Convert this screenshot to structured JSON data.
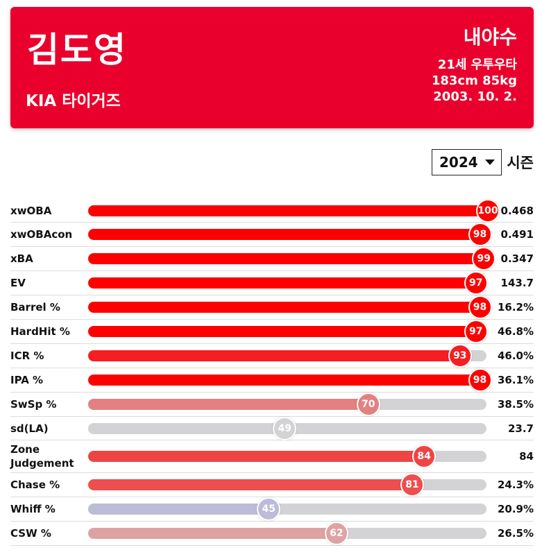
{
  "player": {
    "name": "김도영",
    "team": "KIA 타이거즈",
    "position": "내야수",
    "age_hand": "21세 우투우타",
    "body": "183cm 85kg",
    "birth": "2003. 10. 2."
  },
  "season": {
    "selected": "2024",
    "label": "시즌"
  },
  "metrics": [
    {
      "label": "xwOBA",
      "percentile": 100,
      "value": "0.468",
      "color": "#ff0000"
    },
    {
      "label": "xwOBAcon",
      "percentile": 98,
      "value": "0.491",
      "color": "#ff0000"
    },
    {
      "label": "xBA",
      "percentile": 99,
      "value": "0.347",
      "color": "#ff0000"
    },
    {
      "label": "EV",
      "percentile": 97,
      "value": "143.7",
      "color": "#ff0000"
    },
    {
      "label": "Barrel %",
      "percentile": 98,
      "value": "16.2%",
      "color": "#ff0000"
    },
    {
      "label": "HardHit %",
      "percentile": 97,
      "value": "46.8%",
      "color": "#ff0000"
    },
    {
      "label": "ICR %",
      "percentile": 93,
      "value": "46.0%",
      "color": "#f51e22"
    },
    {
      "label": "IPA %",
      "percentile": 98,
      "value": "36.1%",
      "color": "#ff0000"
    },
    {
      "label": "SwSp %",
      "percentile": 70,
      "value": "38.5%",
      "color": "#e38080"
    },
    {
      "label": "sd(LA)",
      "percentile": 49,
      "value": "23.7",
      "color": "#d3d3d5"
    },
    {
      "label": "Zone Judgement",
      "percentile": 84,
      "value": "84",
      "color": "#ef4444"
    },
    {
      "label": "Chase %",
      "percentile": 81,
      "value": "24.3%",
      "color": "#ee4e4e"
    },
    {
      "label": "Whiff %",
      "percentile": 45,
      "value": "20.9%",
      "color": "#bcbcd6"
    },
    {
      "label": "CSW %",
      "percentile": 62,
      "value": "26.5%",
      "color": "#dda3a3"
    }
  ]
}
